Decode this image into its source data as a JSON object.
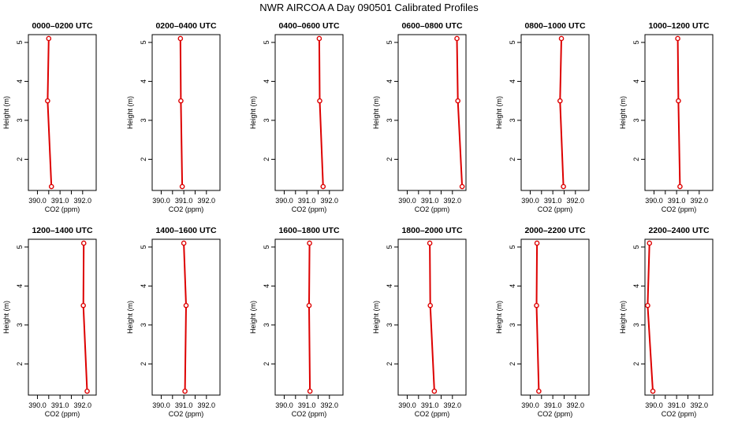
{
  "chart_data": {
    "type": "line",
    "title": "NWR AIRCOA A  Day 090501  Calibrated Profiles",
    "xlabel": "CO2 (ppm)",
    "ylabel": "Height (m)",
    "xlim": [
      389.6,
      392.6
    ],
    "ylim": [
      1.2,
      5.2
    ],
    "xticks": [
      "390.0",
      "391.0",
      "392.0"
    ],
    "xtick_values": [
      390.0,
      390.5,
      391.0,
      391.5,
      392.0
    ],
    "xtick_labeled": [
      true,
      false,
      true,
      false,
      true
    ],
    "yticks": [
      2,
      3,
      4,
      5
    ],
    "ytick_labels": [
      "2",
      "3",
      "4",
      "5"
    ],
    "line_color": "#dd0000",
    "panels": [
      {
        "title": "0000–0200 UTC",
        "heights": [
          5.1,
          3.5,
          1.3
        ],
        "co2": [
          390.5,
          390.45,
          390.62
        ]
      },
      {
        "title": "0200–0400 UTC",
        "heights": [
          5.1,
          3.5,
          1.3
        ],
        "co2": [
          390.85,
          390.87,
          390.93
        ]
      },
      {
        "title": "0400–0600 UTC",
        "heights": [
          5.1,
          3.5,
          1.3
        ],
        "co2": [
          391.55,
          391.57,
          391.72
        ]
      },
      {
        "title": "0600–0800 UTC",
        "heights": [
          5.1,
          3.5,
          1.3
        ],
        "co2": [
          392.2,
          392.24,
          392.43
        ]
      },
      {
        "title": "0800–1000 UTC",
        "heights": [
          5.1,
          3.5,
          1.3
        ],
        "co2": [
          391.38,
          391.32,
          391.47
        ]
      },
      {
        "title": "1000–1200 UTC",
        "heights": [
          5.1,
          3.5,
          1.3
        ],
        "co2": [
          391.05,
          391.08,
          391.15
        ]
      },
      {
        "title": "1200–1400 UTC",
        "heights": [
          5.1,
          3.5,
          1.3
        ],
        "co2": [
          392.05,
          392.03,
          392.2
        ]
      },
      {
        "title": "1400–1600 UTC",
        "heights": [
          5.1,
          3.5,
          1.3
        ],
        "co2": [
          391.0,
          391.1,
          391.05
        ]
      },
      {
        "title": "1600–1800 UTC",
        "heights": [
          5.1,
          3.5,
          1.3
        ],
        "co2": [
          391.12,
          391.1,
          391.14
        ]
      },
      {
        "title": "1800–2000 UTC",
        "heights": [
          5.1,
          3.5,
          1.3
        ],
        "co2": [
          391.0,
          391.02,
          391.2
        ]
      },
      {
        "title": "2000–2200 UTC",
        "heights": [
          5.1,
          3.5,
          1.3
        ],
        "co2": [
          390.3,
          390.28,
          390.38
        ]
      },
      {
        "title": "2200–2400 UTC",
        "heights": [
          5.1,
          3.5,
          1.3
        ],
        "co2": [
          389.8,
          389.72,
          389.95
        ]
      }
    ]
  }
}
